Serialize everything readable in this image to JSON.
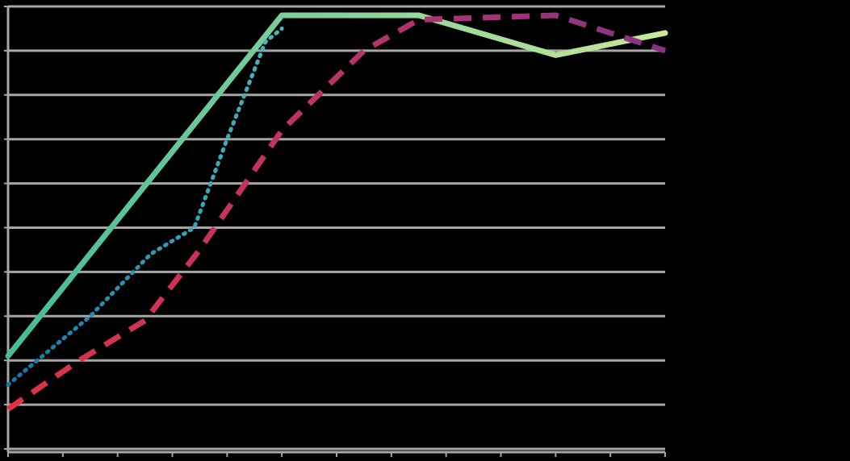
{
  "chart_data": {
    "type": "line",
    "title": "",
    "xlabel": "",
    "ylabel": "",
    "grid": true,
    "legend": "none",
    "x": [
      0,
      1,
      2,
      3,
      4,
      5,
      6,
      7,
      8,
      9,
      10,
      11,
      12
    ],
    "xlim": [
      0,
      12
    ],
    "ylim": [
      0,
      10
    ],
    "series": [
      {
        "style": "solid",
        "gradient": [
          "#44BB99",
          "#C8E89A"
        ],
        "points": [
          [
            0,
            2.1
          ],
          [
            5,
            9.8
          ],
          [
            7.5,
            9.8
          ],
          [
            10,
            8.9
          ],
          [
            12,
            9.4
          ]
        ]
      },
      {
        "style": "dotted",
        "gradient": [
          "#1177AA",
          "#44BBBB"
        ],
        "points": [
          [
            0,
            1.45
          ],
          [
            1.5,
            3.0
          ],
          [
            2.6,
            4.4
          ],
          [
            3.4,
            5.0
          ],
          [
            4.0,
            7.0
          ],
          [
            4.7,
            9.2
          ],
          [
            5.0,
            9.5
          ]
        ]
      },
      {
        "style": "dashed",
        "gradient": [
          "#DD3344",
          "#BB3366",
          "#883388"
        ],
        "points": [
          [
            0,
            0.9
          ],
          [
            1.3,
            2.0
          ],
          [
            2.5,
            2.9
          ],
          [
            3.5,
            4.5
          ],
          [
            5.0,
            7.2
          ],
          [
            6.5,
            9.0
          ],
          [
            7.5,
            9.7
          ],
          [
            10,
            9.8
          ],
          [
            12,
            9.0
          ]
        ]
      }
    ],
    "colors": {
      "background": "#000000",
      "gridline": "#A6A6A6",
      "axis": "#A6A6A6"
    }
  }
}
